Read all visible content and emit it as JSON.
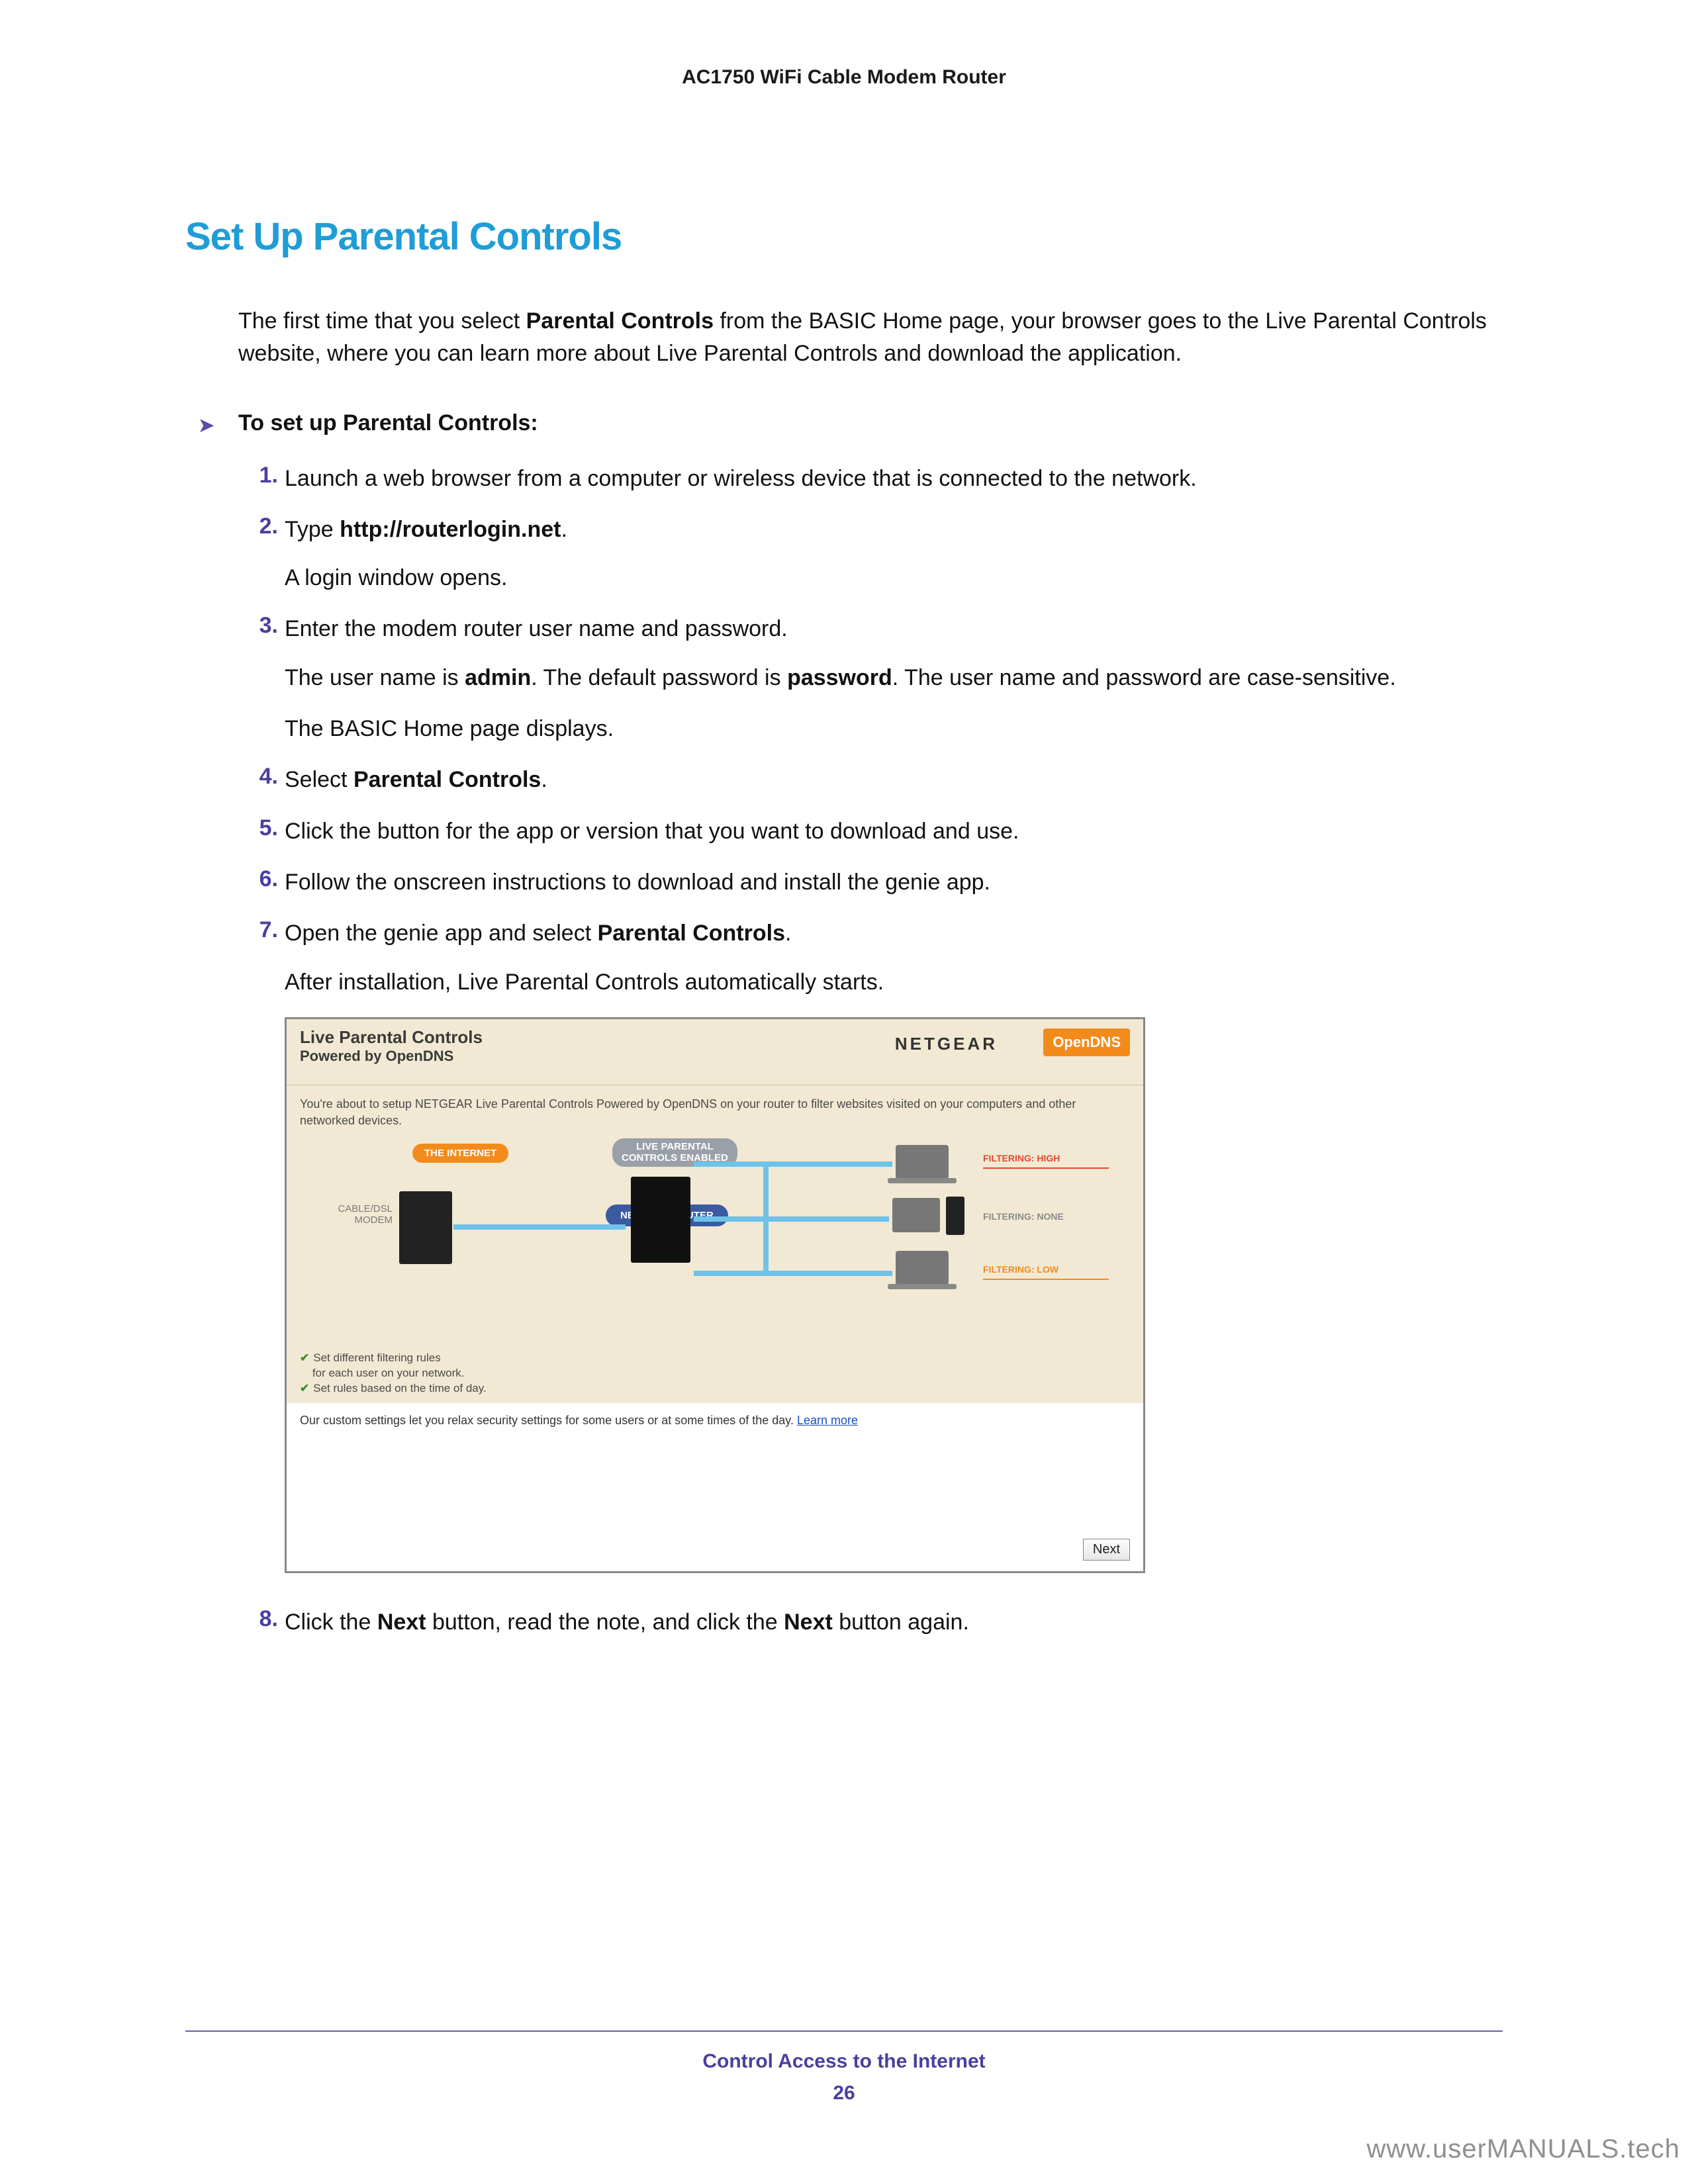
{
  "header": {
    "product": "AC1750 WiFi Cable Modem Router"
  },
  "title": "Set Up Parental Controls",
  "intro": {
    "pre": "The first time that you select ",
    "bold": "Parental Controls",
    "post": " from the BASIC Home page, your browser goes to the Live Parental Controls website, where you can learn more about Live Parental Controls and download the application."
  },
  "procedure_label": "To set up Parental Controls:",
  "steps": {
    "s1": {
      "num": "1.",
      "text": "Launch a web browser from a computer or wireless device that is connected to the network."
    },
    "s2": {
      "num": "2.",
      "pre": "Type ",
      "bold": "http://routerlogin.net",
      "post": ".",
      "sub": "A login window opens."
    },
    "s3": {
      "num": "3.",
      "text": "Enter the modem router user name and password.",
      "sub1_pre": "The user name is ",
      "sub1_b1": "admin",
      "sub1_mid": ". The default password is ",
      "sub1_b2": "password",
      "sub1_post": ". The user name and password are case-sensitive.",
      "sub2": "The BASIC Home page displays."
    },
    "s4": {
      "num": "4.",
      "pre": "Select ",
      "bold": "Parental Controls",
      "post": "."
    },
    "s5": {
      "num": "5.",
      "text": "Click the button for the app or version that you want to download and use."
    },
    "s6": {
      "num": "6.",
      "text": "Follow the onscreen instructions to download and install the genie app."
    },
    "s7": {
      "num": "7.",
      "pre": "Open the genie app and select ",
      "bold": "Parental Controls",
      "post": ".",
      "sub": "After installation, Live Parental Controls automatically starts."
    },
    "s8": {
      "num": "8.",
      "pre": "Click the ",
      "b1": "Next",
      "mid": " button, read the note, and click the ",
      "b2": "Next",
      "post": " button again."
    }
  },
  "embed": {
    "title": "Live Parental Controls",
    "subtitle": "Powered by OpenDNS",
    "brand": "NETGEAR",
    "opendns": "OpenDNS",
    "desc": "You're about to setup NETGEAR Live Parental Controls Powered by OpenDNS on your router to filter websites visited on your computers and other networked devices.",
    "pill_internet": "THE INTERNET",
    "pill_enabled_l1": "LIVE PARENTAL",
    "pill_enabled_l2": "CONTROLS ENABLED",
    "pill_router": "NETGEAR ROUTER",
    "lbl_modem_l1": "CABLE/DSL",
    "lbl_modem_l2": "MODEM",
    "flt_high": "FILTERING: HIGH",
    "flt_none": "FILTERING: NONE",
    "flt_low": "FILTERING: LOW",
    "bullet1_l1": "Set different filtering rules",
    "bullet1_l2": "for each user on your network.",
    "bullet2": "Set rules based on the time of day.",
    "lower_text": "Our custom settings let you relax security settings for some users or at some times of the day. ",
    "learn_more": "Learn more",
    "next": "Next",
    "colors": {
      "header_bg": "#f2e9d4",
      "orange": "#f28b1c",
      "grey_pill": "#9aa0a8",
      "blue_pill": "#3b5aa0",
      "conn": "#6fc2e8",
      "flt_high": "#e2492f",
      "flt_none": "#8a8a8a",
      "flt_low": "#f28b1c"
    }
  },
  "footer": {
    "section": "Control Access to the Internet",
    "page": "26"
  },
  "watermark": "www.userMANUALS.tech",
  "colors": {
    "title": "#1e9dd6",
    "step_num": "#4a3fa0",
    "footer": "#4a3fa0",
    "rule": "#6a5fb0"
  }
}
